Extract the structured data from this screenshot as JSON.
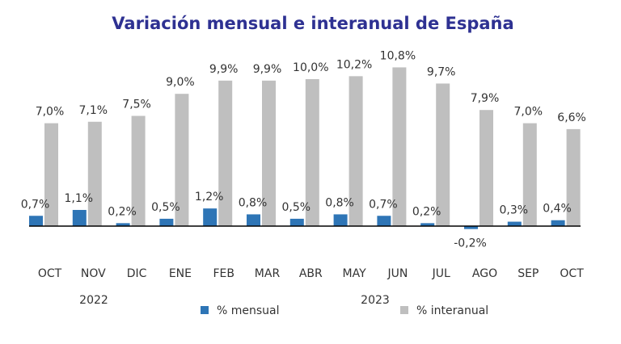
{
  "chart_data": {
    "type": "bar",
    "title": "Variación mensual e interanual de España",
    "categories": [
      "OCT",
      "NOV",
      "DIC",
      "ENE",
      "FEB",
      "MAR",
      "ABR",
      "MAY",
      "JUN",
      "JUL",
      "AGO",
      "SEP",
      "OCT"
    ],
    "year_labels": [
      "2022",
      "2023"
    ],
    "series": [
      {
        "name": "% mensual",
        "color": "#2E75B6",
        "values": [
          0.7,
          1.1,
          0.2,
          0.5,
          1.2,
          0.8,
          0.5,
          0.8,
          0.7,
          0.2,
          -0.2,
          0.3,
          0.4
        ],
        "labels": [
          "0,7%",
          "1,1%",
          "0,2%",
          "0,5%",
          "1,2%",
          "0,8%",
          "0,5%",
          "0,8%",
          "0,7%",
          "0,2%",
          "-0,2%",
          "0,3%",
          "0,4%"
        ]
      },
      {
        "name": "% interanual",
        "color": "#BFBFBF",
        "values": [
          7.0,
          7.1,
          7.5,
          9.0,
          9.9,
          9.9,
          10.0,
          10.2,
          10.8,
          9.7,
          7.9,
          7.0,
          6.6
        ],
        "labels": [
          "7,0%",
          "7,1%",
          "7,5%",
          "9,0%",
          "9,9%",
          "9,9%",
          "10,0%",
          "10,2%",
          "10,8%",
          "9,7%",
          "7,9%",
          "7,0%",
          "6,6%"
        ]
      }
    ],
    "xlabel": "",
    "ylabel": "",
    "ylim": [
      -0.2,
      10.8
    ],
    "grid": false,
    "legend": "bottom",
    "title_color": "#2E3192",
    "axis_color": "#000000"
  }
}
